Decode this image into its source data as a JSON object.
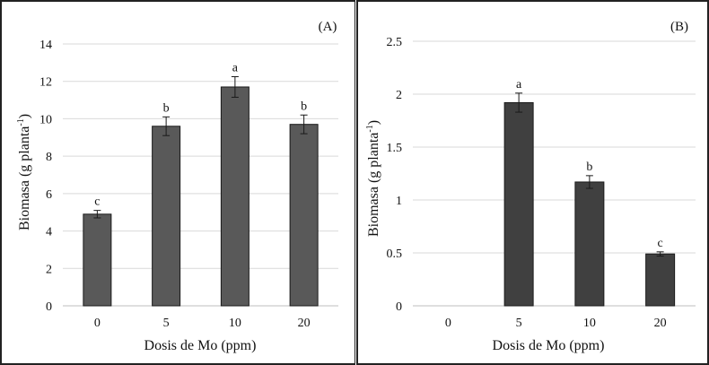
{
  "chart_data": [
    {
      "panel_label": "(A)",
      "type": "bar",
      "categories": [
        "0",
        "5",
        "10",
        "20"
      ],
      "values": [
        4.9,
        9.6,
        11.7,
        9.7
      ],
      "errors": [
        0.2,
        0.5,
        0.55,
        0.5
      ],
      "letters": [
        "c",
        "b",
        "a",
        "b"
      ],
      "yticks": [
        "0",
        "2",
        "4",
        "6",
        "8",
        "10",
        "12",
        "14"
      ],
      "ylim": [
        0,
        14
      ],
      "xlabel": "Dosis de Mo (ppm)",
      "ylabel_main": "Biomasa (g planta",
      "ylabel_sup": "-1",
      "ylabel_close": ")",
      "bar_color": "#595959",
      "grid": true
    },
    {
      "panel_label": "(B)",
      "type": "bar",
      "categories": [
        "0",
        "5",
        "10",
        "20"
      ],
      "values": [
        0,
        1.92,
        1.17,
        0.49
      ],
      "errors": [
        0,
        0.09,
        0.06,
        0.02
      ],
      "letters": [
        "",
        "a",
        "b",
        "c"
      ],
      "yticks": [
        "0",
        "0.5",
        "1",
        "1.5",
        "2",
        "2.5"
      ],
      "ylim": [
        0,
        2.5
      ],
      "xlabel": "Dosis de Mo (ppm)",
      "ylabel_main": "Biomasa (g planta",
      "ylabel_sup": "-1",
      "ylabel_close": ")",
      "bar_color": "#404040",
      "grid": true
    }
  ]
}
